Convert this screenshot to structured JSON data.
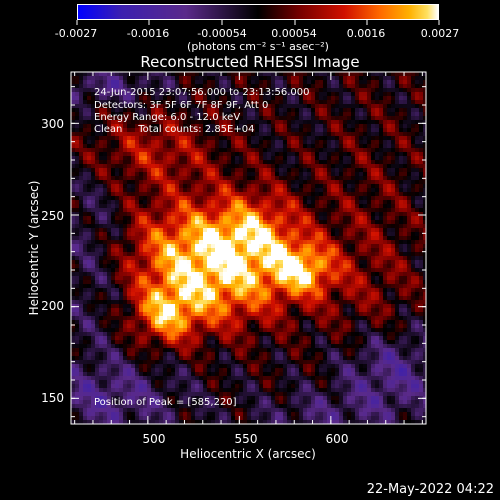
{
  "colorbar": {
    "tick_labels": [
      "-0.0027",
      "-0.0016",
      "-0.00054",
      "0.00054",
      "0.0016",
      "0.0027"
    ],
    "units": "(photons cm⁻² s⁻¹ asec⁻²)",
    "colors": [
      "#0000ff",
      "#3b1fb0",
      "#5a2a8a",
      "#000000",
      "#7a0000",
      "#d01000",
      "#ff6a00",
      "#ffb000",
      "#ffe060",
      "#ffffff"
    ]
  },
  "chart_data": {
    "type": "heatmap",
    "title": "Reconstructed RHESSI Image",
    "xlabel": "Heliocentric X (arcsec)",
    "ylabel": "Heliocentric Y (arcsec)",
    "xlim": [
      458,
      652
    ],
    "ylim": [
      136,
      328
    ],
    "x_ticks": [
      500,
      550,
      600
    ],
    "y_ticks": [
      150,
      200,
      250,
      300
    ],
    "z_range": [
      -0.0027,
      0.0027
    ],
    "peak_position": [
      585,
      220
    ],
    "info_lines": [
      "24-Jun-2015 23:07:56.000 to 23:13:56.000",
      "Detectors: 3F 5F 6F 7F 8F 9F, Att 0",
      "Energy Range: 6.0 - 12.0 keV",
      "Clean     Total counts: 2.85E+04"
    ],
    "peak_label": "Position of Peak = [585,220]"
  },
  "footer": {
    "datestamp": "22-May-2022 04:22"
  }
}
